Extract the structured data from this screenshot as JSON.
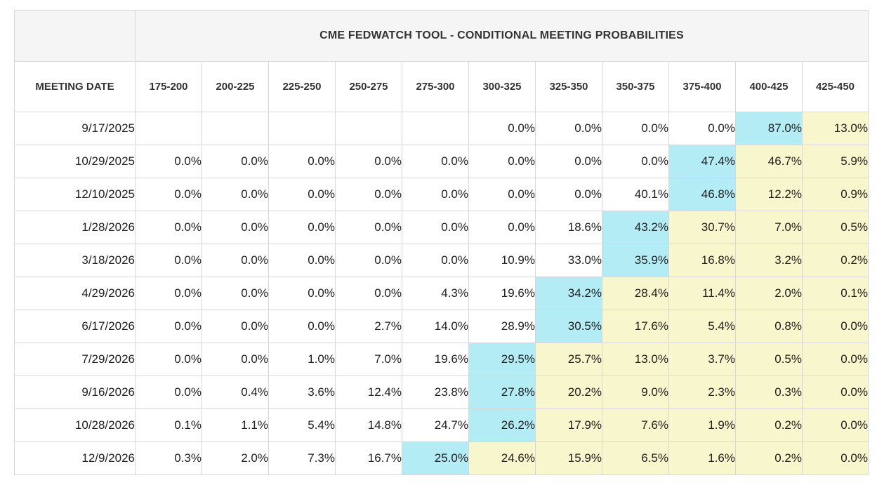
{
  "chart_data": {
    "type": "table",
    "title": "CME FEDWATCH TOOL - CONDITIONAL MEETING PROBABILITIES",
    "row_header_label": "MEETING DATE",
    "columns": [
      "175-200",
      "200-225",
      "225-250",
      "250-275",
      "275-300",
      "300-325",
      "325-350",
      "350-375",
      "375-400",
      "400-425",
      "425-450"
    ],
    "rows": [
      {
        "date": "9/17/2025",
        "values": [
          "",
          "",
          "",
          "",
          "",
          "0.0%",
          "0.0%",
          "0.0%",
          "0.0%",
          "87.0%",
          "13.0%"
        ],
        "highlight": 9
      },
      {
        "date": "10/29/2025",
        "values": [
          "0.0%",
          "0.0%",
          "0.0%",
          "0.0%",
          "0.0%",
          "0.0%",
          "0.0%",
          "0.0%",
          "47.4%",
          "46.7%",
          "5.9%"
        ],
        "highlight": 8
      },
      {
        "date": "12/10/2025",
        "values": [
          "0.0%",
          "0.0%",
          "0.0%",
          "0.0%",
          "0.0%",
          "0.0%",
          "0.0%",
          "40.1%",
          "46.8%",
          "12.2%",
          "0.9%"
        ],
        "highlight": 8
      },
      {
        "date": "1/28/2026",
        "values": [
          "0.0%",
          "0.0%",
          "0.0%",
          "0.0%",
          "0.0%",
          "0.0%",
          "18.6%",
          "43.2%",
          "30.7%",
          "7.0%",
          "0.5%"
        ],
        "highlight": 7
      },
      {
        "date": "3/18/2026",
        "values": [
          "0.0%",
          "0.0%",
          "0.0%",
          "0.0%",
          "0.0%",
          "10.9%",
          "33.0%",
          "35.9%",
          "16.8%",
          "3.2%",
          "0.2%"
        ],
        "highlight": 7
      },
      {
        "date": "4/29/2026",
        "values": [
          "0.0%",
          "0.0%",
          "0.0%",
          "0.0%",
          "4.3%",
          "19.6%",
          "34.2%",
          "28.4%",
          "11.4%",
          "2.0%",
          "0.1%"
        ],
        "highlight": 6
      },
      {
        "date": "6/17/2026",
        "values": [
          "0.0%",
          "0.0%",
          "0.0%",
          "2.7%",
          "14.0%",
          "28.9%",
          "30.5%",
          "17.6%",
          "5.4%",
          "0.8%",
          "0.0%"
        ],
        "highlight": 6
      },
      {
        "date": "7/29/2026",
        "values": [
          "0.0%",
          "0.0%",
          "1.0%",
          "7.0%",
          "19.6%",
          "29.5%",
          "25.7%",
          "13.0%",
          "3.7%",
          "0.5%",
          "0.0%"
        ],
        "highlight": 5
      },
      {
        "date": "9/16/2026",
        "values": [
          "0.0%",
          "0.4%",
          "3.6%",
          "12.4%",
          "23.8%",
          "27.8%",
          "20.2%",
          "9.0%",
          "2.3%",
          "0.3%",
          "0.0%"
        ],
        "highlight": 5
      },
      {
        "date": "10/28/2026",
        "values": [
          "0.1%",
          "1.1%",
          "5.4%",
          "14.8%",
          "24.7%",
          "26.2%",
          "17.9%",
          "7.6%",
          "1.9%",
          "0.2%",
          "0.0%"
        ],
        "highlight": 5
      },
      {
        "date": "12/9/2026",
        "values": [
          "0.3%",
          "2.0%",
          "7.3%",
          "16.7%",
          "25.0%",
          "24.6%",
          "15.9%",
          "6.5%",
          "1.6%",
          "0.2%",
          "0.0%"
        ],
        "highlight": 4
      }
    ],
    "colors": {
      "highlight": "#b4ecf5",
      "above_highlight": "#f7f6cc"
    }
  }
}
